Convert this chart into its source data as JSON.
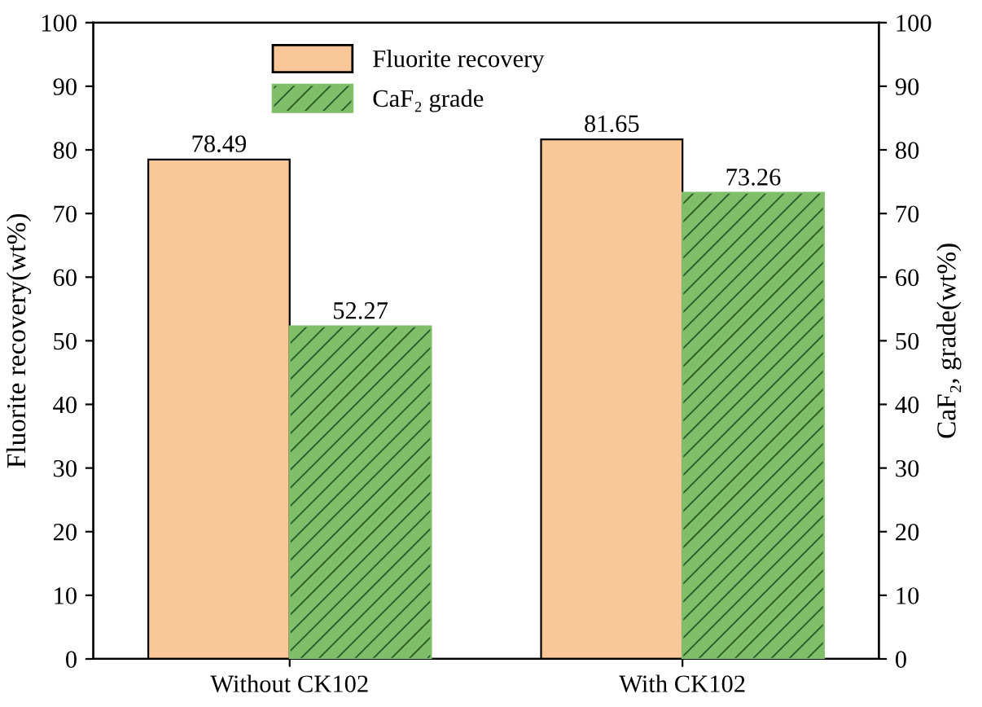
{
  "chart_data": {
    "type": "bar",
    "categories": [
      "Without CK102",
      "With CK102"
    ],
    "series": [
      {
        "name": "Fluorite recovery",
        "color": "#fac898",
        "values": [
          78.49,
          81.65
        ]
      },
      {
        "name": "CaF₂ grade",
        "color": "#7fbf6a",
        "values": [
          52.27,
          73.26
        ],
        "axis": "y2"
      }
    ],
    "ylabel": "Fluorite recovery(wt%)",
    "y2label": "CaF₂, grade(wt%)",
    "ylim": [
      0,
      100
    ],
    "yticks": [
      0,
      10,
      20,
      30,
      40,
      50,
      60,
      70,
      80,
      90,
      100
    ],
    "y2lim": [
      0,
      100
    ],
    "y2ticks": [
      0,
      10,
      20,
      30,
      40,
      50,
      60,
      70,
      80,
      90,
      100
    ],
    "data_labels": true,
    "legend": "top left",
    "grid": false
  }
}
